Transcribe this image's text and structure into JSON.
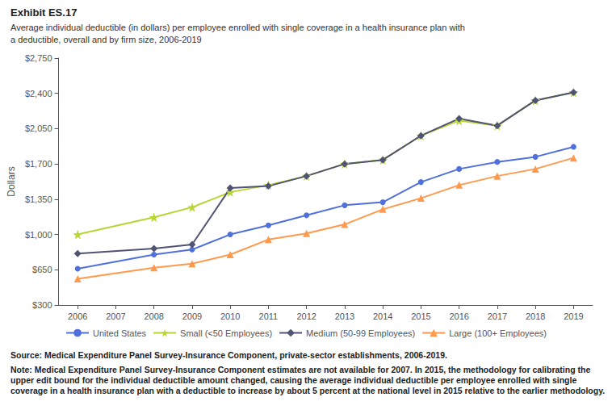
{
  "chart_data": {
    "type": "line",
    "title": "Exhibit ES.17",
    "subtitle": [
      "Average individual deductible (in dollars) per employee enrolled with single coverage in a health insurance plan with",
      "a deductible, overall and by firm size, 2006-2019"
    ],
    "y_label": "Dollars",
    "annotations": [
      "Source: Medical Expenditure Panel Survey-Insurance Component, private-sector establishments, 2006-2019.",
      "Note: Medical Expenditure Panel Survey-Insurance Component estimates are not available for 2007. In 2015, the methodology for calibrating the upper edit bound for the individual deductible amount changed, causing the average individual deductible per employee enrolled with single coverage in a health insurance plan with a deductible to increase by about 5 percent at the national level in 2015 relative to the earlier methodology."
    ],
    "x": [
      2006,
      2008,
      2009,
      2010,
      2011,
      2012,
      2013,
      2014,
      2015,
      2016,
      2017,
      2018,
      2019
    ],
    "series": [
      {
        "name": "United States",
        "marker": "circle",
        "values": [
          660,
          800,
          850,
          1000,
          1090,
          1190,
          1290,
          1320,
          1520,
          1650,
          1720,
          1770,
          1870
        ]
      },
      {
        "name": "Small (<50 Employees)",
        "marker": "star",
        "values": [
          1000,
          1170,
          1270,
          1420,
          1490,
          1580,
          1700,
          1740,
          1980,
          2130,
          2080,
          2330,
          2410
        ]
      },
      {
        "name": "Medium (50-99 Employees)",
        "marker": "diamond",
        "values": [
          810,
          860,
          900,
          1460,
          1480,
          1580,
          1700,
          1740,
          1980,
          2150,
          2080,
          2330,
          2410
        ]
      },
      {
        "name": "Large (100+ Employees)",
        "marker": "triangle",
        "values": [
          560,
          670,
          710,
          800,
          950,
          1010,
          1100,
          1250,
          1360,
          1490,
          1580,
          1650,
          1760
        ]
      }
    ],
    "xlim": [
      2005.5,
      2019.5
    ],
    "xticks": [
      2006,
      2007,
      2008,
      2009,
      2010,
      2011,
      2012,
      2013,
      2014,
      2015,
      2016,
      2017,
      2018,
      2019
    ],
    "ylim": [
      300,
      2750
    ],
    "yticks": [
      {
        "value": 300,
        "label": "$300"
      },
      {
        "value": 650,
        "label": "$650"
      },
      {
        "value": 1000,
        "label": "$1,000"
      },
      {
        "value": 1350,
        "label": "$1,350"
      },
      {
        "value": 1700,
        "label": "$1,700"
      },
      {
        "value": 2050,
        "label": "$2,050"
      },
      {
        "value": 2400,
        "label": "$2,400"
      },
      {
        "value": 2750,
        "label": "$2,750"
      }
    ],
    "grid": false,
    "legend": "bottom"
  }
}
